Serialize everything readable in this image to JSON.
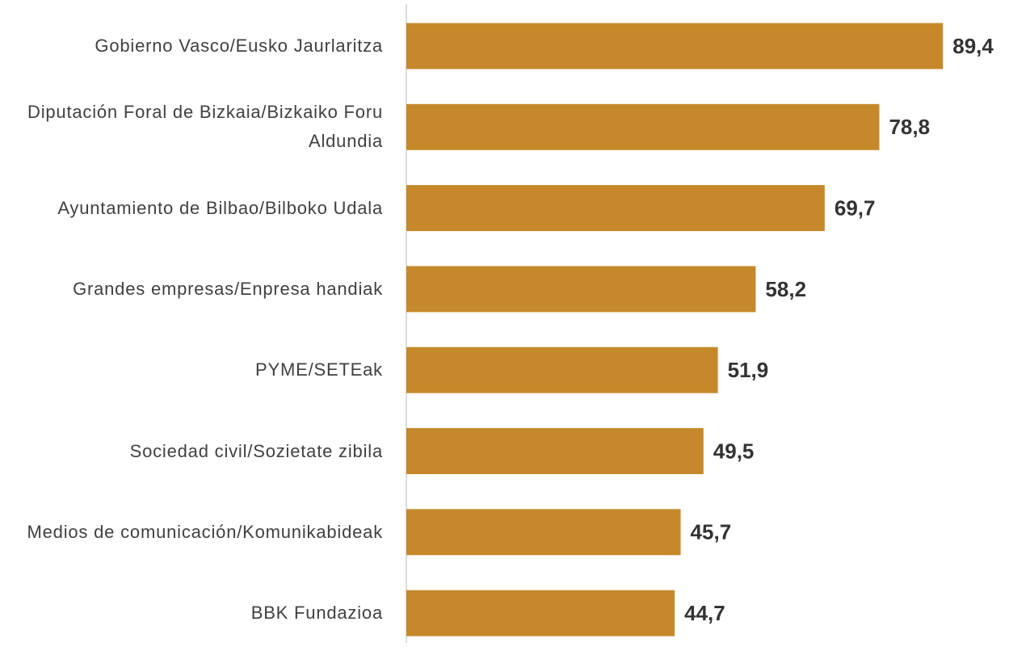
{
  "chart_data": {
    "type": "barh",
    "categories": [
      "Gobierno Vasco/Eusko Jaurlaritza",
      "Diputación Foral de Bizkaia/Bizkaiko Foru Aldundia",
      "Ayuntamiento de Bilbao/Bilboko Udala",
      "Grandes empresas/Enpresa handiak",
      "PYME/SETEak",
      "Sociedad civil/Sozietate zibila",
      "Medios de comunicación/Komunikabideak",
      "BBK Fundazioa"
    ],
    "values": [
      89.4,
      78.8,
      69.7,
      58.2,
      51.9,
      49.5,
      45.7,
      44.7
    ],
    "value_labels": [
      "89,4",
      "78,8",
      "69,7",
      "58,2",
      "51,9",
      "49,5",
      "45,7",
      "44,7"
    ],
    "color": "#c5892b",
    "xlim": [
      0,
      100
    ]
  }
}
